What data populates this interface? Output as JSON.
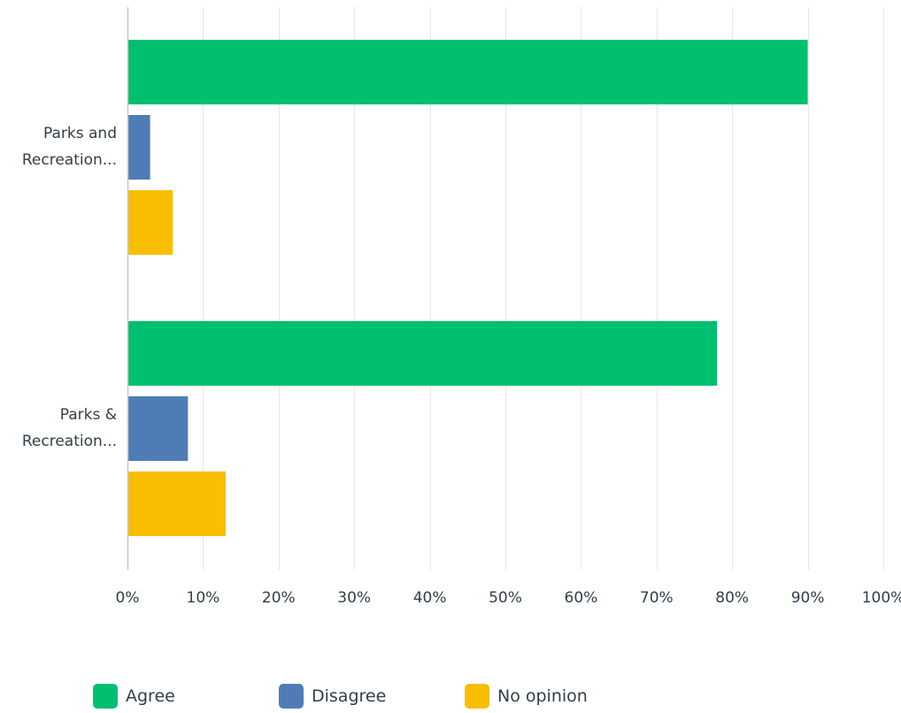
{
  "chart_data": {
    "type": "bar",
    "orientation": "horizontal",
    "categories": [
      "Parks and Recreation...",
      "Parks & Recreation..."
    ],
    "category_label_lines": [
      [
        "Parks and",
        "Recreation..."
      ],
      [
        "Parks &",
        "Recreation..."
      ]
    ],
    "series": [
      {
        "name": "Agree",
        "values": [
          90,
          78
        ],
        "color": "#00bf6f"
      },
      {
        "name": "Disagree",
        "values": [
          3,
          8
        ],
        "color": "#507cb6"
      },
      {
        "name": "No opinion",
        "values": [
          6,
          13
        ],
        "color": "#f9be00"
      }
    ],
    "x_ticks": [
      "0%",
      "10%",
      "20%",
      "30%",
      "40%",
      "50%",
      "60%",
      "70%",
      "80%",
      "90%",
      "100%"
    ],
    "xlim": [
      0,
      100
    ],
    "unit": "%",
    "grid": true,
    "legend_position": "bottom",
    "gridline_color": "#e6e6e6",
    "axis_color": "#c6c6c6"
  }
}
